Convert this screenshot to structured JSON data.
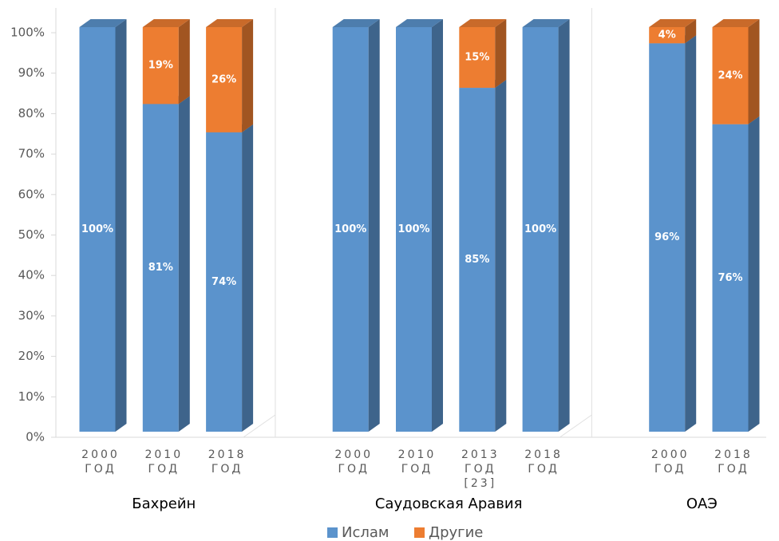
{
  "chart_data": {
    "type": "bar",
    "stacked": true,
    "ylim": [
      0,
      100
    ],
    "yticks": [
      {
        "value": 0,
        "label": "0%"
      },
      {
        "value": 10,
        "label": "10%"
      },
      {
        "value": 20,
        "label": "20%"
      },
      {
        "value": 30,
        "label": "30%"
      },
      {
        "value": 40,
        "label": "40%"
      },
      {
        "value": 50,
        "label": "50%"
      },
      {
        "value": 60,
        "label": "60%"
      },
      {
        "value": 70,
        "label": "70%"
      },
      {
        "value": 80,
        "label": "80%"
      },
      {
        "value": 90,
        "label": "90%"
      },
      {
        "value": 100,
        "label": "100%"
      }
    ],
    "grid": false,
    "legend": "bottom",
    "series": [
      {
        "name": "Ислам",
        "color": "#5b93cc"
      },
      {
        "name": "Другие",
        "color": "#ed7d31"
      }
    ],
    "groups": [
      {
        "label": "Бахрейн",
        "categories": [
          "2000 ГОД",
          "2010 ГОД",
          "2018 ГОД"
        ],
        "data": [
          [
            100,
            81,
            74
          ],
          [
            0,
            19,
            26
          ]
        ],
        "data_labels": [
          [
            "100%",
            "81%",
            "74%"
          ],
          [
            null,
            "19%",
            "26%"
          ]
        ]
      },
      {
        "label": "Саудовская Аравия",
        "categories": [
          "2000 ГОД",
          "2010 ГОД",
          "2013 ГОД [23]",
          "2018 ГОД"
        ],
        "data": [
          [
            100,
            100,
            85,
            100
          ],
          [
            0,
            0,
            15,
            0
          ]
        ],
        "data_labels": [
          [
            "100%",
            "100%",
            "85%",
            "100%"
          ],
          [
            null,
            null,
            "15%",
            null
          ]
        ]
      },
      {
        "label": "ОАЭ",
        "categories": [
          "2000 ГОД",
          "2018 ГОД"
        ],
        "data": [
          [
            96,
            76
          ],
          [
            4,
            24
          ]
        ],
        "data_labels": [
          [
            "96%",
            "76%"
          ],
          [
            "4%",
            "24%"
          ]
        ]
      }
    ]
  }
}
